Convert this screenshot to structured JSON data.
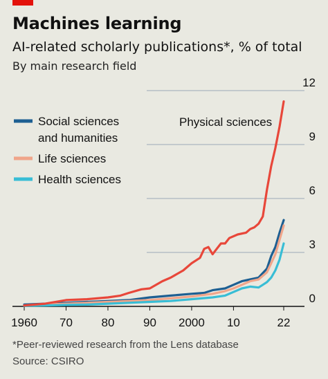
{
  "header": {
    "title": "Machines learning",
    "subtitle": "AI-related scholarly publications*, % of total",
    "subsubtitle": "By main research field"
  },
  "footer": {
    "footnote": "*Peer-reviewed research from the Lens database",
    "source": "Source: CSIRO"
  },
  "colors": {
    "background": "#e9e9e1",
    "accent": "#e3120b",
    "physical": "#e8473a",
    "social": "#1d5f92",
    "life": "#f0a58a",
    "health": "#38bdd5",
    "grid": "#9ba9b6"
  },
  "chart_data": {
    "type": "line",
    "xlim": [
      1960,
      2022
    ],
    "ylim": [
      0,
      12
    ],
    "y_ticks": [
      0,
      3,
      6,
      9,
      12
    ],
    "x_ticks": [
      1960,
      1970,
      1980,
      1990,
      2000,
      2010,
      2022
    ],
    "x_tick_labels": [
      "1960",
      "70",
      "80",
      "90",
      "2000",
      "10",
      "22"
    ],
    "grid": "horizontal",
    "y_axis_side": "right",
    "legend_position": "top-left",
    "series": [
      {
        "name": "Social sciences and humanities",
        "color_key": "social",
        "points": [
          [
            1960,
            0.1
          ],
          [
            1965,
            0.15
          ],
          [
            1970,
            0.2
          ],
          [
            1975,
            0.25
          ],
          [
            1980,
            0.3
          ],
          [
            1985,
            0.35
          ],
          [
            1990,
            0.5
          ],
          [
            1995,
            0.6
          ],
          [
            2000,
            0.7
          ],
          [
            2003,
            0.75
          ],
          [
            2005,
            0.9
          ],
          [
            2008,
            1.0
          ],
          [
            2010,
            1.2
          ],
          [
            2012,
            1.4
          ],
          [
            2014,
            1.5
          ],
          [
            2016,
            1.6
          ],
          [
            2018,
            2.1
          ],
          [
            2019,
            2.8
          ],
          [
            2020,
            3.3
          ],
          [
            2021,
            4.1
          ],
          [
            2022,
            4.8
          ]
        ]
      },
      {
        "name": "Life sciences",
        "color_key": "life",
        "points": [
          [
            1960,
            0.05
          ],
          [
            1965,
            0.1
          ],
          [
            1970,
            0.15
          ],
          [
            1975,
            0.2
          ],
          [
            1980,
            0.25
          ],
          [
            1985,
            0.3
          ],
          [
            1990,
            0.35
          ],
          [
            1995,
            0.45
          ],
          [
            2000,
            0.55
          ],
          [
            2005,
            0.7
          ],
          [
            2008,
            0.85
          ],
          [
            2010,
            1.0
          ],
          [
            2012,
            1.2
          ],
          [
            2014,
            1.4
          ],
          [
            2016,
            1.5
          ],
          [
            2018,
            1.9
          ],
          [
            2019,
            2.4
          ],
          [
            2020,
            2.9
          ],
          [
            2021,
            3.7
          ],
          [
            2022,
            4.5
          ]
        ]
      },
      {
        "name": "Health sciences",
        "color_key": "health",
        "points": [
          [
            1960,
            0.03
          ],
          [
            1965,
            0.05
          ],
          [
            1970,
            0.08
          ],
          [
            1975,
            0.1
          ],
          [
            1980,
            0.15
          ],
          [
            1985,
            0.2
          ],
          [
            1990,
            0.25
          ],
          [
            1995,
            0.3
          ],
          [
            2000,
            0.4
          ],
          [
            2005,
            0.5
          ],
          [
            2008,
            0.6
          ],
          [
            2010,
            0.8
          ],
          [
            2012,
            1.0
          ],
          [
            2014,
            1.1
          ],
          [
            2016,
            1.05
          ],
          [
            2017,
            1.2
          ],
          [
            2018,
            1.35
          ],
          [
            2019,
            1.6
          ],
          [
            2020,
            2.0
          ],
          [
            2021,
            2.6
          ],
          [
            2022,
            3.5
          ]
        ]
      },
      {
        "name": "Physical sciences",
        "color_key": "physical",
        "points": [
          [
            1960,
            0.05
          ],
          [
            1965,
            0.15
          ],
          [
            1970,
            0.35
          ],
          [
            1975,
            0.4
          ],
          [
            1980,
            0.5
          ],
          [
            1983,
            0.6
          ],
          [
            1985,
            0.75
          ],
          [
            1988,
            0.95
          ],
          [
            1990,
            1.0
          ],
          [
            1993,
            1.4
          ],
          [
            1995,
            1.6
          ],
          [
            1998,
            2.0
          ],
          [
            2000,
            2.4
          ],
          [
            2002,
            2.7
          ],
          [
            2003,
            3.2
          ],
          [
            2004,
            3.3
          ],
          [
            2005,
            2.9
          ],
          [
            2006,
            3.2
          ],
          [
            2007,
            3.5
          ],
          [
            2008,
            3.5
          ],
          [
            2009,
            3.8
          ],
          [
            2011,
            4.0
          ],
          [
            2013,
            4.1
          ],
          [
            2014,
            4.3
          ],
          [
            2015,
            4.4
          ],
          [
            2016,
            4.6
          ],
          [
            2017,
            5.0
          ],
          [
            2018,
            6.5
          ],
          [
            2019,
            7.8
          ],
          [
            2020,
            8.8
          ],
          [
            2021,
            10.0
          ],
          [
            2022,
            11.4
          ]
        ]
      }
    ],
    "legend": [
      {
        "label_lines": [
          "Social sciences",
          "and humanities"
        ],
        "color_key": "social"
      },
      {
        "label_lines": [
          "Life sciences"
        ],
        "color_key": "life"
      },
      {
        "label_lines": [
          "Health sciences"
        ],
        "color_key": "health"
      }
    ],
    "annotations": [
      {
        "text": "Physical sciences",
        "series": "Physical sciences"
      }
    ]
  }
}
